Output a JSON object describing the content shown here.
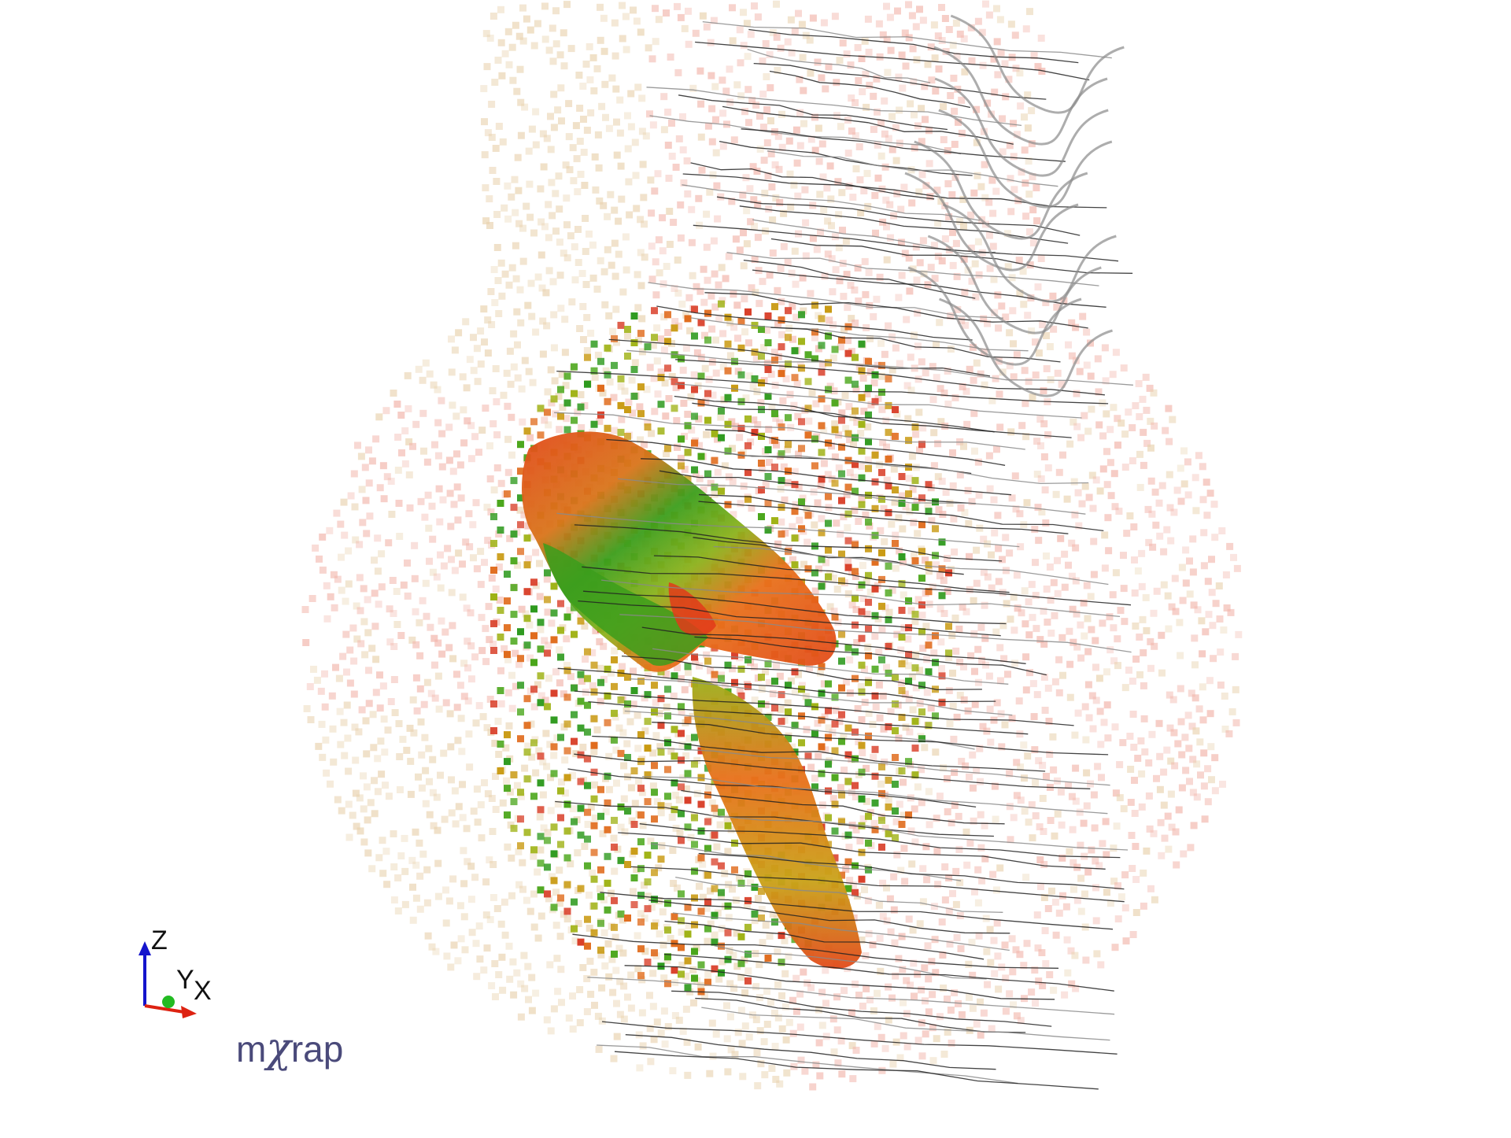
{
  "viewer": {
    "background": "#ffffff"
  },
  "scene": {
    "block_model": {
      "faint_halo_color": "#f2b7ad",
      "faint_tan_color": "#e9d3b0",
      "dense_colors": [
        "#d9402a",
        "#e06a1a",
        "#c99a12",
        "#9fb214",
        "#4aa61a",
        "#2e9a1e"
      ]
    },
    "orebody_surface": {
      "colors": [
        "#e24a1a",
        "#e8701a",
        "#c9a218",
        "#8bb21c",
        "#3c9e1c"
      ]
    },
    "drill_traces": {
      "color": "#222222",
      "outline_color": "#8a8a8a"
    }
  },
  "axes": {
    "z_label": "Z",
    "y_label": "Y",
    "x_label": "X",
    "z_color": "#1414cc",
    "y_color": "#22bb22",
    "x_color": "#dd2211"
  },
  "logo": {
    "part1": "m",
    "part2": "χ",
    "part3": "rap",
    "color": "#4a4a7a"
  }
}
